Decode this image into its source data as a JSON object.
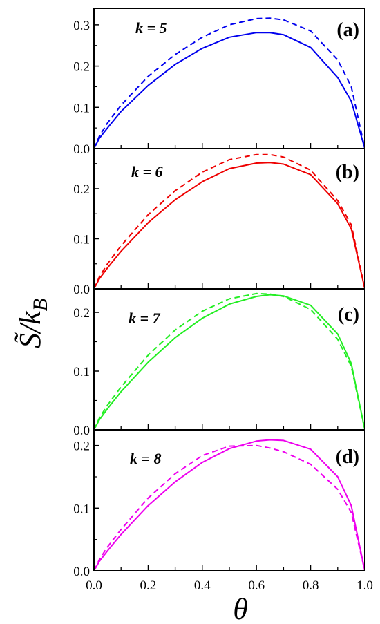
{
  "chart_data": {
    "type": "line",
    "xlabel": "θ",
    "ylabel": "S̃/k_B",
    "xlim": [
      0.0,
      1.0
    ],
    "x_ticks": [
      "0.0",
      "0.2",
      "0.4",
      "0.6",
      "0.8",
      "1.0"
    ],
    "shared_x_axis": true,
    "grid": false,
    "panels": [
      {
        "label": "(a)",
        "k_text": "k = 5",
        "color": "#0000ee",
        "ylim": [
          0.0,
          0.34
        ],
        "y_ticks": [
          "0.0",
          "0.1",
          "0.2",
          "0.3"
        ],
        "series": [
          {
            "style": "solid",
            "x": [
              0,
              0.02,
              0.05,
              0.1,
              0.2,
              0.3,
              0.4,
              0.5,
              0.6,
              0.65,
              0.7,
              0.8,
              0.9,
              0.95,
              1.0
            ],
            "y": [
              0,
              0.025,
              0.05,
              0.09,
              0.153,
              0.204,
              0.243,
              0.27,
              0.281,
              0.281,
              0.276,
              0.245,
              0.172,
              0.115,
              0
            ]
          },
          {
            "style": "dashed",
            "x": [
              0,
              0.02,
              0.05,
              0.1,
              0.2,
              0.3,
              0.4,
              0.5,
              0.6,
              0.65,
              0.7,
              0.8,
              0.9,
              0.95,
              1.0
            ],
            "y": [
              0,
              0.03,
              0.062,
              0.105,
              0.175,
              0.228,
              0.27,
              0.3,
              0.315,
              0.316,
              0.312,
              0.285,
              0.215,
              0.15,
              0
            ]
          }
        ]
      },
      {
        "label": "(b)",
        "k_text": "k = 6",
        "color": "#ee0000",
        "ylim": [
          0.0,
          0.28
        ],
        "y_ticks": [
          "0.0",
          "0.1",
          "0.2"
        ],
        "series": [
          {
            "style": "solid",
            "x": [
              0,
              0.02,
              0.05,
              0.1,
              0.2,
              0.3,
              0.4,
              0.5,
              0.6,
              0.65,
              0.7,
              0.8,
              0.9,
              0.95,
              1.0
            ],
            "y": [
              0,
              0.02,
              0.042,
              0.075,
              0.132,
              0.178,
              0.214,
              0.24,
              0.251,
              0.252,
              0.249,
              0.228,
              0.17,
              0.12,
              0
            ]
          },
          {
            "style": "dashed",
            "x": [
              0,
              0.02,
              0.05,
              0.1,
              0.2,
              0.3,
              0.4,
              0.5,
              0.6,
              0.65,
              0.7,
              0.8,
              0.9,
              0.95,
              1.0
            ],
            "y": [
              0,
              0.024,
              0.05,
              0.086,
              0.148,
              0.196,
              0.233,
              0.258,
              0.268,
              0.268,
              0.263,
              0.237,
              0.176,
              0.128,
              0
            ]
          }
        ]
      },
      {
        "label": "(c)",
        "k_text": "k = 7",
        "color": "#22ee22",
        "ylim": [
          0.0,
          0.24
        ],
        "y_ticks": [
          "0.0",
          "0.1",
          "0.2"
        ],
        "series": [
          {
            "style": "solid",
            "x": [
              0,
              0.02,
              0.05,
              0.1,
              0.2,
              0.3,
              0.4,
              0.5,
              0.6,
              0.65,
              0.7,
              0.8,
              0.9,
              0.95,
              1.0
            ],
            "y": [
              0,
              0.017,
              0.036,
              0.065,
              0.115,
              0.157,
              0.19,
              0.214,
              0.227,
              0.23,
              0.228,
              0.212,
              0.163,
              0.113,
              0
            ]
          },
          {
            "style": "dashed",
            "x": [
              0,
              0.02,
              0.05,
              0.1,
              0.2,
              0.3,
              0.4,
              0.5,
              0.6,
              0.65,
              0.7,
              0.8,
              0.9,
              0.95,
              1.0
            ],
            "y": [
              0,
              0.02,
              0.042,
              0.073,
              0.127,
              0.17,
              0.202,
              0.223,
              0.232,
              0.231,
              0.227,
              0.205,
              0.154,
              0.108,
              0
            ]
          }
        ]
      },
      {
        "label": "(d)",
        "k_text": "k = 8",
        "color": "#ee00ee",
        "ylim": [
          0.0,
          0.225
        ],
        "y_ticks": [
          "0.0",
          "0.1",
          "0.2"
        ],
        "series": [
          {
            "style": "solid",
            "x": [
              0,
              0.02,
              0.05,
              0.1,
              0.2,
              0.3,
              0.4,
              0.5,
              0.6,
              0.65,
              0.7,
              0.8,
              0.9,
              0.95,
              1.0
            ],
            "y": [
              0,
              0.015,
              0.032,
              0.058,
              0.104,
              0.142,
              0.173,
              0.195,
              0.207,
              0.209,
              0.208,
              0.194,
              0.15,
              0.104,
              0
            ]
          },
          {
            "style": "dashed",
            "x": [
              0,
              0.02,
              0.05,
              0.1,
              0.2,
              0.3,
              0.4,
              0.5,
              0.6,
              0.65,
              0.7,
              0.8,
              0.9,
              0.95,
              1.0
            ],
            "y": [
              0,
              0.018,
              0.038,
              0.066,
              0.116,
              0.155,
              0.184,
              0.199,
              0.2,
              0.196,
              0.19,
              0.17,
              0.13,
              0.093,
              0
            ]
          }
        ]
      }
    ]
  }
}
